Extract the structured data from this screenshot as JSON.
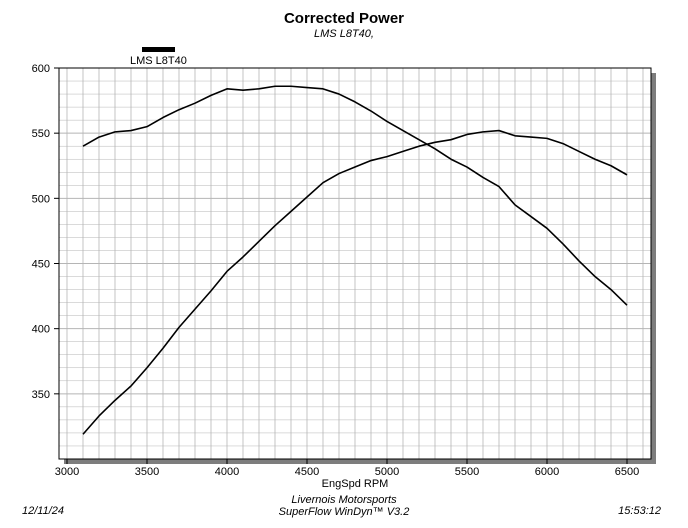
{
  "header": {
    "title": "Corrected Power",
    "subtitle": "LMS L8T40,"
  },
  "legend": {
    "label": "LMS L8T40",
    "color": "#000000"
  },
  "footer": {
    "date": "12/11/24",
    "company": "Livernois Motorsports",
    "software": "SuperFlow WinDyn™ V3.2",
    "time": "15:53:12"
  },
  "chart_data": {
    "type": "line",
    "title": "Corrected Power",
    "subtitle": "LMS L8T40,",
    "xlabel": "EngSpd RPM",
    "ylabel": "",
    "xlim": [
      2950,
      6650
    ],
    "ylim": [
      300,
      600
    ],
    "x_ticks": [
      3000,
      3500,
      4000,
      4500,
      5000,
      5500,
      6000,
      6500
    ],
    "y_ticks": [
      350,
      400,
      450,
      500,
      550,
      600
    ],
    "x_tick_labels": [
      "3000",
      "3500",
      "4000",
      "4500",
      "5000",
      "5500",
      "6000",
      "6500"
    ],
    "y_tick_labels": [
      "350",
      "400",
      "450",
      "500",
      "550",
      "600"
    ],
    "x_minor_step": 100,
    "y_minor_step": 10,
    "grid": true,
    "legend_position": "top-left",
    "colors": {
      "line": "#000000",
      "grid": "#b5b5b5",
      "shadow": "#7d7d7d"
    },
    "series": [
      {
        "name": "LMS L8T40",
        "points": [
          [
            3100,
            540
          ],
          [
            3200,
            547
          ],
          [
            3300,
            551
          ],
          [
            3400,
            552
          ],
          [
            3500,
            555
          ],
          [
            3600,
            562
          ],
          [
            3700,
            568
          ],
          [
            3800,
            573
          ],
          [
            3900,
            579
          ],
          [
            4000,
            584
          ],
          [
            4100,
            583
          ],
          [
            4200,
            584
          ],
          [
            4300,
            586
          ],
          [
            4400,
            586
          ],
          [
            4500,
            585
          ],
          [
            4600,
            584
          ],
          [
            4700,
            580
          ],
          [
            4800,
            574
          ],
          [
            4900,
            567
          ],
          [
            5000,
            559
          ],
          [
            5100,
            552
          ],
          [
            5200,
            545
          ],
          [
            5300,
            538
          ],
          [
            5400,
            530
          ],
          [
            5500,
            524
          ],
          [
            5600,
            516
          ],
          [
            5700,
            509
          ],
          [
            5800,
            495
          ],
          [
            5900,
            486
          ],
          [
            6000,
            477
          ],
          [
            6100,
            465
          ],
          [
            6200,
            452
          ],
          [
            6300,
            440
          ],
          [
            6400,
            430
          ],
          [
            6500,
            418
          ]
        ]
      },
      {
        "points": [
          [
            3100,
            319
          ],
          [
            3200,
            333
          ],
          [
            3300,
            345
          ],
          [
            3400,
            356
          ],
          [
            3500,
            370
          ],
          [
            3600,
            385
          ],
          [
            3700,
            401
          ],
          [
            3800,
            415
          ],
          [
            3900,
            429
          ],
          [
            4000,
            444
          ],
          [
            4100,
            455
          ],
          [
            4200,
            467
          ],
          [
            4300,
            479
          ],
          [
            4400,
            490
          ],
          [
            4500,
            501
          ],
          [
            4600,
            512
          ],
          [
            4700,
            519
          ],
          [
            4800,
            524
          ],
          [
            4900,
            529
          ],
          [
            5000,
            532
          ],
          [
            5100,
            536
          ],
          [
            5200,
            540
          ],
          [
            5300,
            543
          ],
          [
            5400,
            545
          ],
          [
            5500,
            549
          ],
          [
            5600,
            551
          ],
          [
            5700,
            552
          ],
          [
            5800,
            548
          ],
          [
            5900,
            547
          ],
          [
            6000,
            546
          ],
          [
            6100,
            542
          ],
          [
            6200,
            536
          ],
          [
            6300,
            530
          ],
          [
            6400,
            525
          ],
          [
            6500,
            518
          ]
        ]
      }
    ]
  }
}
